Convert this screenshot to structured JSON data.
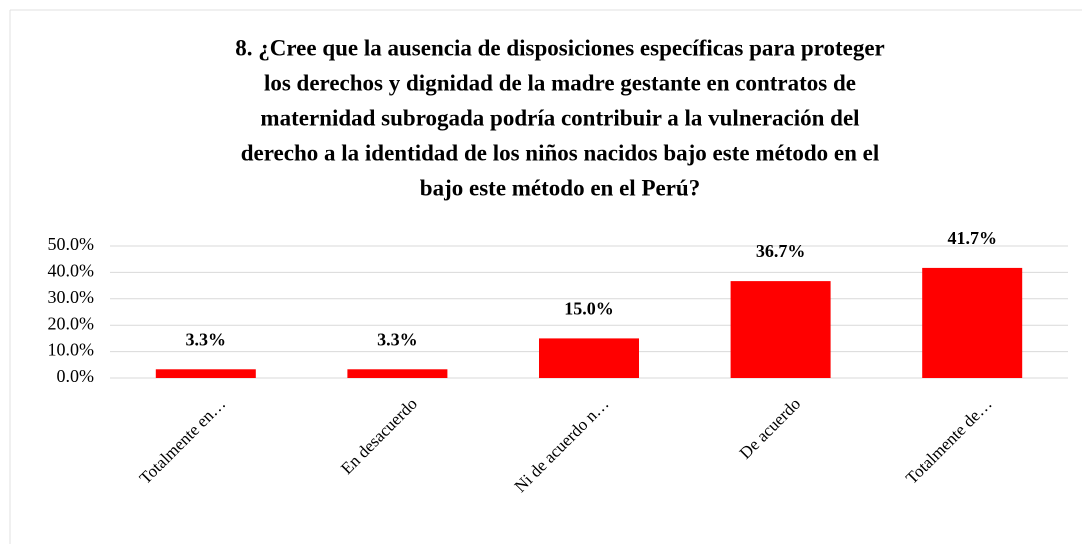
{
  "chart_data": {
    "type": "bar",
    "title": [
      "8. ¿Cree que la ausencia de disposiciones específicas para proteger",
      "los derechos y dignidad de la madre gestante en contratos de",
      "maternidad subrogada podría contribuir a la vulneración del",
      "derecho a la identidad de los niños nacidos bajo este método en el",
      "bajo este método en el Perú?"
    ],
    "categories": [
      "Totalmente en…",
      "En desacuerdo",
      "Ni de acuerdo n…",
      "De acuerdo",
      "Totalmente de…"
    ],
    "values": [
      3.3,
      3.3,
      15.0,
      36.7,
      41.7
    ],
    "value_labels": [
      "3.3%",
      "3.3%",
      "15.0%",
      "36.7%",
      "41.7%"
    ],
    "color": "#ff0000",
    "ylim": [
      0,
      50
    ],
    "yticks": [
      {
        "value": 0,
        "label": "0.0%"
      },
      {
        "value": 10,
        "label": "10.0%"
      },
      {
        "value": 20,
        "label": "20.0%"
      },
      {
        "value": 30,
        "label": "30.0%"
      },
      {
        "value": 40,
        "label": "40.0%"
      },
      {
        "value": 50,
        "label": "50.0%"
      }
    ],
    "grid": true
  }
}
